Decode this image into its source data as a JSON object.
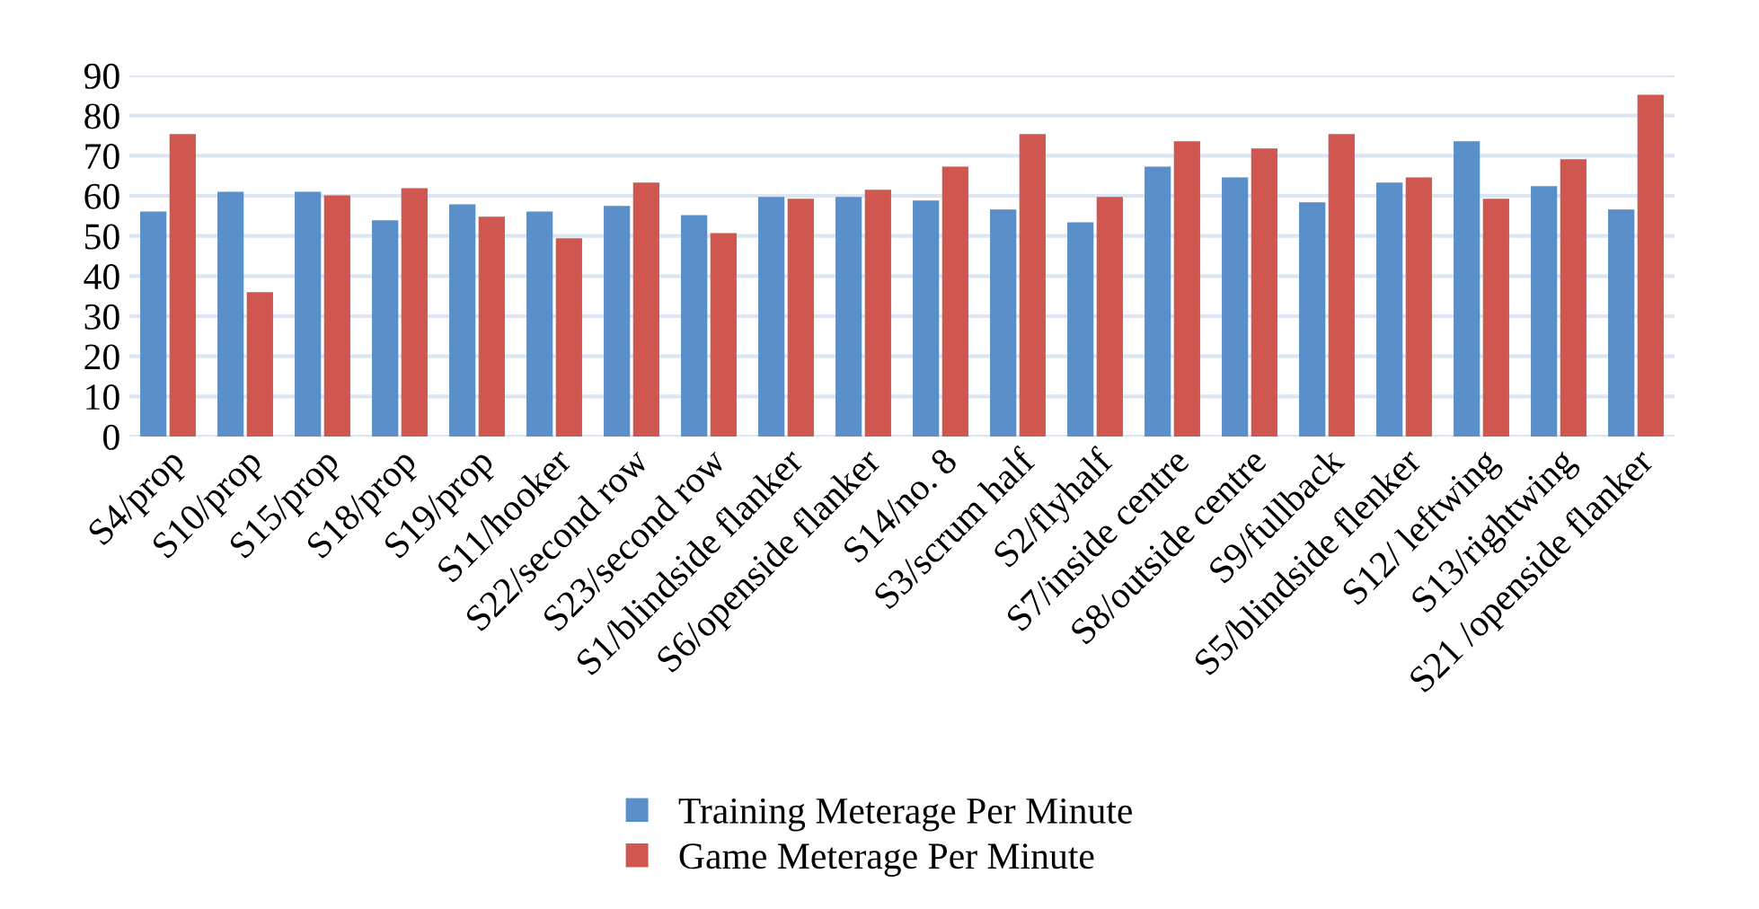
{
  "chart_data": {
    "type": "bar",
    "categories": [
      "S4/prop",
      "S10/prop",
      "S15/prop",
      "S18/prop",
      "S19/prop",
      "S11/hooker",
      "S22/second row",
      "S23/second row",
      "S1/blindside flanker",
      "S6/openside flanker",
      "S14/no. 8",
      "S3/scrum half",
      "S2/flyhalf",
      "S7/inside centre",
      "S8/outside centre",
      "S9/fullback",
      "S5/blindside flenker",
      "S12/ leftwing",
      "S13/rightwing",
      "S21 /openside flanker"
    ],
    "series": [
      {
        "name": "Training Meterage Per Minute",
        "color": "#5b8fc9",
        "values": [
          56.1,
          61.0,
          61.0,
          53.9,
          57.9,
          56.1,
          57.5,
          55.2,
          59.7,
          59.7,
          58.8,
          56.6,
          53.4,
          67.3,
          64.6,
          58.4,
          63.3,
          73.6,
          62.4,
          56.6
        ]
      },
      {
        "name": "Game Meterage Per Minute",
        "color": "#d0574f",
        "values": [
          75.4,
          36.0,
          60.1,
          61.9,
          54.8,
          49.4,
          63.3,
          50.7,
          59.3,
          61.5,
          67.3,
          75.4,
          59.7,
          73.6,
          71.8,
          75.4,
          64.6,
          59.3,
          69.1,
          85.2
        ]
      }
    ],
    "ylim": [
      0,
      90
    ],
    "yticks": [
      0,
      10,
      20,
      30,
      40,
      50,
      60,
      70,
      80,
      90
    ],
    "grid": "y",
    "legend": "bottom"
  }
}
